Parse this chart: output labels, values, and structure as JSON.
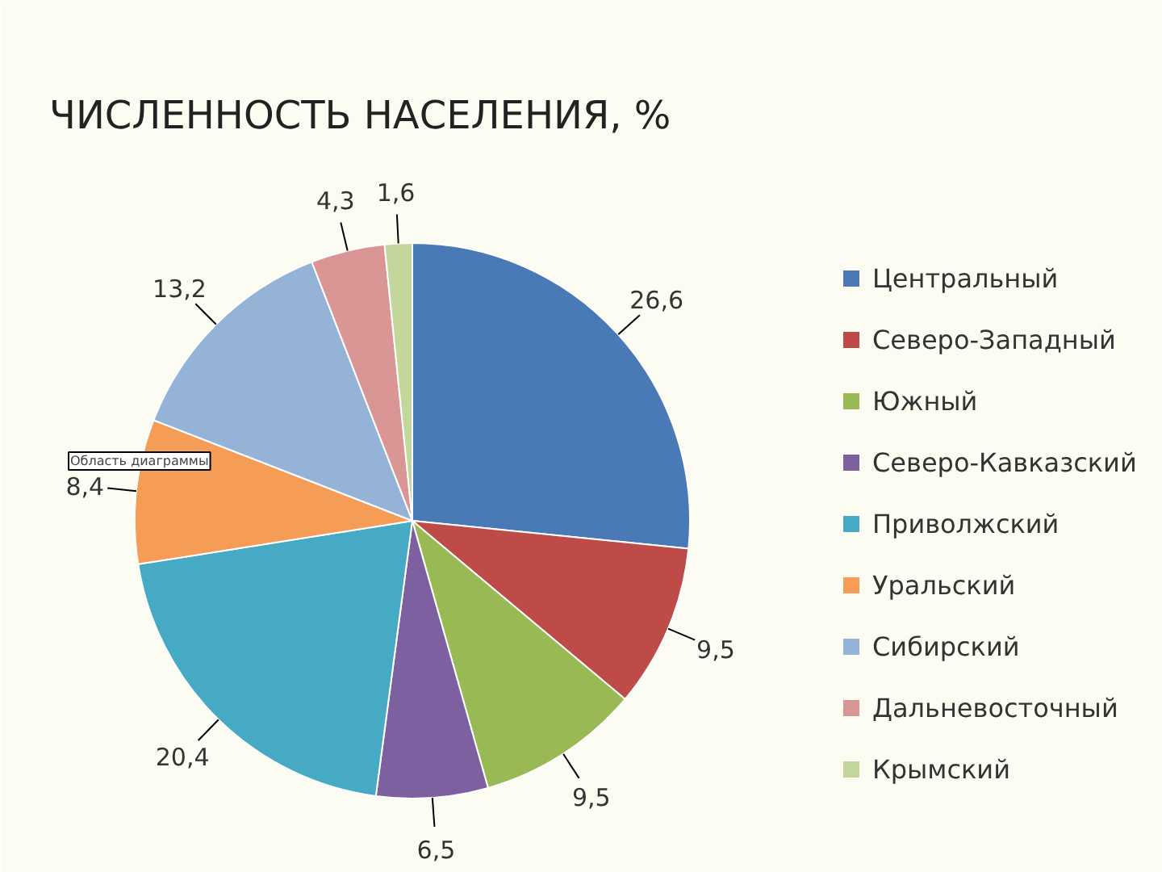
{
  "chart_data": {
    "type": "pie",
    "title": "ЧИСЛЕННОСТЬ НАСЕЛЕНИЯ, %",
    "categories": [
      "Центральный",
      "Северо-Западный",
      "Южный",
      "Северо-Кавказский",
      "Приволжский",
      "Уральский",
      "Сибирский",
      "Дальневосточный",
      "Крымский"
    ],
    "values": [
      26.6,
      9.5,
      9.5,
      6.5,
      20.4,
      8.4,
      13.2,
      4.3,
      1.6
    ],
    "value_labels": [
      "26,6",
      "9,5",
      "9,5",
      "6,5",
      "20,4",
      "8,4",
      "13,2",
      "4,3",
      "1,6"
    ],
    "colors": [
      "#4a7ab5",
      "#be4b48",
      "#98b954",
      "#7d60a0",
      "#46aac5",
      "#f59d56",
      "#95b3d7",
      "#d99694",
      "#c3d69b"
    ],
    "legend": "right",
    "annotations": [
      "Область диаграммы"
    ]
  }
}
